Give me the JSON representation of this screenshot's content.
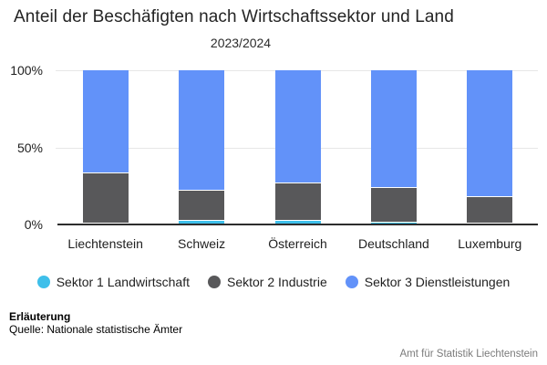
{
  "header": {
    "title": "Anteil der Beschäfigten nach Wirtschaftssektor und Land",
    "subtitle": "2023/2024"
  },
  "chart_data": {
    "type": "bar",
    "stacked": true,
    "unit": "%",
    "title": "Anteil der Beschäfigten nach Wirtschaftssektor und Land",
    "subtitle": "2023/2024",
    "categories": [
      "Liechtenstein",
      "Schweiz",
      "Österreich",
      "Deutschland",
      "Luxemburg"
    ],
    "series": [
      {
        "name": "Sektor 1 Landwirtschaft",
        "color": "#3EBFEA",
        "values": [
          0.8,
          2.4,
          2.3,
          1.4,
          0.7
        ]
      },
      {
        "name": "Sektor 2 Industrie",
        "color": "#58585A",
        "values": [
          32.5,
          19.5,
          24.3,
          22.4,
          17.3
        ]
      },
      {
        "name": "Sektor 3 Dienstleistungen",
        "color": "#6292F9",
        "values": [
          66.7,
          78.1,
          73.4,
          76.2,
          82.0
        ]
      }
    ],
    "yticks": [
      {
        "label": "0%",
        "value": 0
      },
      {
        "label": "50%",
        "value": 50
      },
      {
        "label": "100%",
        "value": 100
      }
    ],
    "ylim": [
      0,
      100
    ],
    "grid": "horizontal",
    "legend_position": "bottom"
  },
  "footer": {
    "note_title": "Erläuterung",
    "note_source": "Quelle: Nationale statistische Ämter",
    "attribution": "Amt für Statistik Liechtenstein"
  },
  "colors": {
    "sektor1": "#3EBFEA",
    "sektor2": "#58585A",
    "sektor3": "#6292F9",
    "gridline": "#E7E7E7",
    "axis": "#2D2D2D"
  }
}
